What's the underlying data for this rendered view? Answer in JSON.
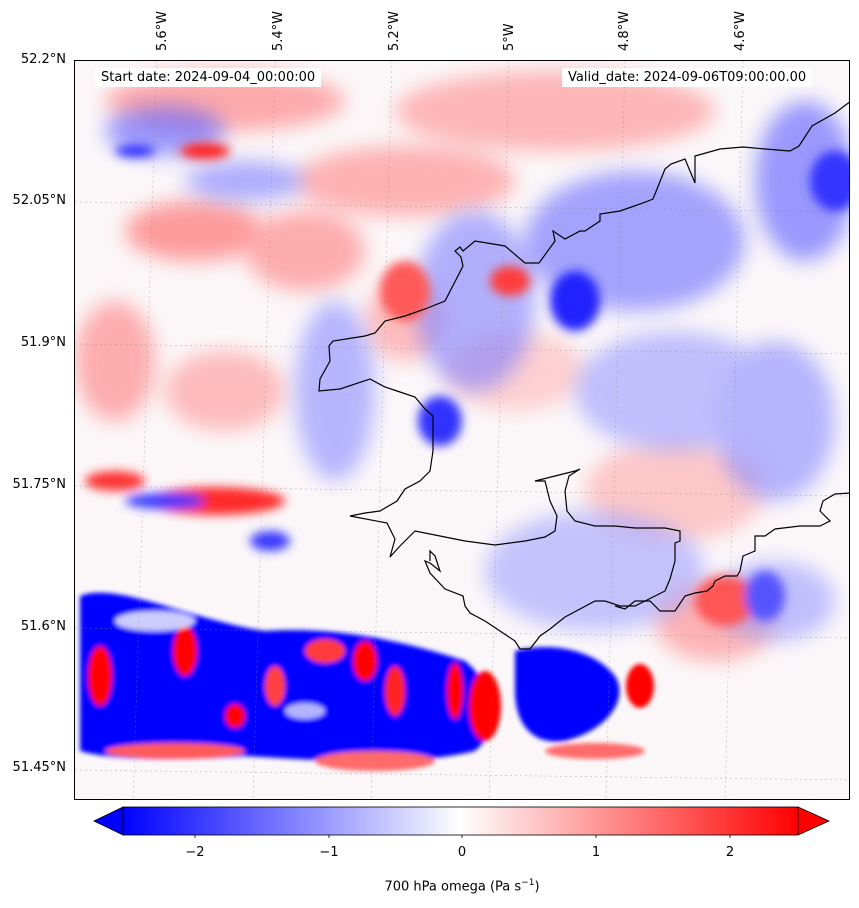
{
  "map": {
    "start_date": "Start date: 2024-09-04_00:00:00",
    "valid_date": "Valid_date: 2024-09-06T09:00:00.00",
    "lat_ticks": [
      "52.2°N",
      "52.05°N",
      "51.9°N",
      "51.75°N",
      "51.6°N",
      "51.45°N"
    ],
    "lon_ticks": [
      "5.6°W",
      "5.4°W",
      "5.2°W",
      "5°W",
      "4.8°W",
      "4.6°W"
    ],
    "colors": {
      "negative": "#0000ff",
      "zero": "#ffffff",
      "positive": "#ff0000",
      "coast": "#000000"
    }
  },
  "colorbar": {
    "ticks": [
      "−2",
      "−1",
      "0",
      "1",
      "2"
    ],
    "label": "700 hPa omega (Pa s",
    "label_sup": "−1",
    "label_close": ")",
    "range": [
      -2.5,
      2.5
    ]
  }
}
